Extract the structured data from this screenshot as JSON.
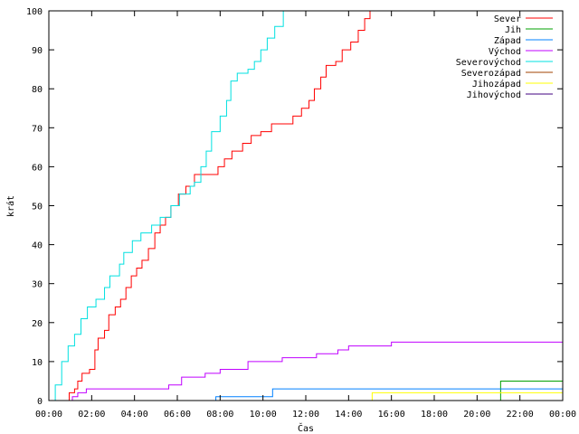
{
  "chart_data": {
    "type": "line",
    "title": "",
    "xlabel": "Čas",
    "ylabel": "krát",
    "xlim": [
      0,
      24
    ],
    "ylim": [
      0,
      100
    ],
    "grid": false,
    "legend_placement": "top-right",
    "x_ticks": [
      {
        "v": 0,
        "label": "00:00"
      },
      {
        "v": 2,
        "label": "02:00"
      },
      {
        "v": 4,
        "label": "04:00"
      },
      {
        "v": 6,
        "label": "06:00"
      },
      {
        "v": 8,
        "label": "08:00"
      },
      {
        "v": 10,
        "label": "10:00"
      },
      {
        "v": 12,
        "label": "12:00"
      },
      {
        "v": 14,
        "label": "14:00"
      },
      {
        "v": 16,
        "label": "16:00"
      },
      {
        "v": 18,
        "label": "18:00"
      },
      {
        "v": 20,
        "label": "20:00"
      },
      {
        "v": 22,
        "label": "22:00"
      },
      {
        "v": 24,
        "label": "00:00"
      }
    ],
    "y_ticks": [
      {
        "v": 0,
        "label": "0"
      },
      {
        "v": 10,
        "label": "10"
      },
      {
        "v": 20,
        "label": "20"
      },
      {
        "v": 30,
        "label": "30"
      },
      {
        "v": 40,
        "label": "40"
      },
      {
        "v": 50,
        "label": "50"
      },
      {
        "v": 60,
        "label": "60"
      },
      {
        "v": 70,
        "label": "70"
      },
      {
        "v": 80,
        "label": "80"
      },
      {
        "v": 90,
        "label": "90"
      },
      {
        "v": 100,
        "label": "100"
      }
    ],
    "series": [
      {
        "name": "Sever",
        "color": "#ff0000",
        "points": [
          [
            0.85,
            0
          ],
          [
            0.95,
            2
          ],
          [
            1.2,
            3
          ],
          [
            1.35,
            5
          ],
          [
            1.55,
            7
          ],
          [
            1.9,
            8
          ],
          [
            2.15,
            13
          ],
          [
            2.3,
            16
          ],
          [
            2.6,
            18
          ],
          [
            2.8,
            22
          ],
          [
            3.1,
            24
          ],
          [
            3.35,
            26
          ],
          [
            3.6,
            29
          ],
          [
            3.85,
            32
          ],
          [
            4.1,
            34
          ],
          [
            4.35,
            36
          ],
          [
            4.65,
            39
          ],
          [
            4.95,
            43
          ],
          [
            5.2,
            45
          ],
          [
            5.45,
            47
          ],
          [
            5.7,
            50
          ],
          [
            6.05,
            53
          ],
          [
            6.4,
            55
          ],
          [
            6.8,
            58
          ],
          [
            7.5,
            58
          ],
          [
            7.9,
            60
          ],
          [
            8.2,
            62
          ],
          [
            8.55,
            64
          ],
          [
            9.05,
            66
          ],
          [
            9.45,
            68
          ],
          [
            9.9,
            69
          ],
          [
            10.4,
            71
          ],
          [
            11.4,
            73
          ],
          [
            11.8,
            75
          ],
          [
            12.15,
            77
          ],
          [
            12.4,
            80
          ],
          [
            12.7,
            83
          ],
          [
            12.95,
            86
          ],
          [
            13.4,
            87
          ],
          [
            13.7,
            90
          ],
          [
            14.1,
            92
          ],
          [
            14.45,
            95
          ],
          [
            14.75,
            98
          ],
          [
            15.0,
            100
          ]
        ]
      },
      {
        "name": "Jih",
        "color": "#00a000",
        "points": [
          [
            20.95,
            0
          ],
          [
            21.1,
            5
          ],
          [
            24,
            5
          ]
        ]
      },
      {
        "name": "Západ",
        "color": "#0080ff",
        "points": [
          [
            7.7,
            0
          ],
          [
            7.8,
            1
          ],
          [
            10.3,
            1
          ],
          [
            10.45,
            3
          ],
          [
            24,
            3
          ]
        ]
      },
      {
        "name": "Východ",
        "color": "#c000ff",
        "points": [
          [
            0,
            0
          ],
          [
            0.8,
            0
          ],
          [
            1.1,
            1
          ],
          [
            1.35,
            2
          ],
          [
            1.75,
            3
          ],
          [
            5.5,
            3
          ],
          [
            5.6,
            4
          ],
          [
            6.2,
            6
          ],
          [
            7.3,
            7
          ],
          [
            8.0,
            8
          ],
          [
            9.3,
            10
          ],
          [
            10.9,
            11
          ],
          [
            12.5,
            12
          ],
          [
            13.5,
            13
          ],
          [
            14.0,
            14
          ],
          [
            16.0,
            15
          ],
          [
            24,
            15
          ]
        ]
      },
      {
        "name": "Severovýchod",
        "color": "#00e0e0",
        "points": [
          [
            0,
            0
          ],
          [
            0.3,
            4
          ],
          [
            0.6,
            10
          ],
          [
            0.9,
            14
          ],
          [
            1.2,
            17
          ],
          [
            1.5,
            21
          ],
          [
            1.8,
            24
          ],
          [
            2.2,
            26
          ],
          [
            2.6,
            29
          ],
          [
            2.85,
            32
          ],
          [
            3.3,
            35
          ],
          [
            3.5,
            38
          ],
          [
            3.9,
            41
          ],
          [
            4.3,
            43
          ],
          [
            4.8,
            45
          ],
          [
            5.2,
            47
          ],
          [
            5.7,
            50
          ],
          [
            6.1,
            53
          ],
          [
            6.6,
            55
          ],
          [
            6.8,
            56
          ],
          [
            7.1,
            60
          ],
          [
            7.35,
            64
          ],
          [
            7.6,
            69
          ],
          [
            8.0,
            73
          ],
          [
            8.3,
            77
          ],
          [
            8.5,
            82
          ],
          [
            8.8,
            84
          ],
          [
            9.3,
            85
          ],
          [
            9.6,
            87
          ],
          [
            9.9,
            90
          ],
          [
            10.2,
            93
          ],
          [
            10.55,
            96
          ],
          [
            10.95,
            100
          ]
        ]
      },
      {
        "name": "Severozápad",
        "color": "#a04000",
        "points": []
      },
      {
        "name": "Jihozápad",
        "color": "#ffff00",
        "points": [
          [
            15.0,
            0
          ],
          [
            15.1,
            2
          ],
          [
            24,
            2
          ]
        ]
      },
      {
        "name": "Jihovýchod",
        "color": "#400080",
        "points": []
      }
    ]
  }
}
